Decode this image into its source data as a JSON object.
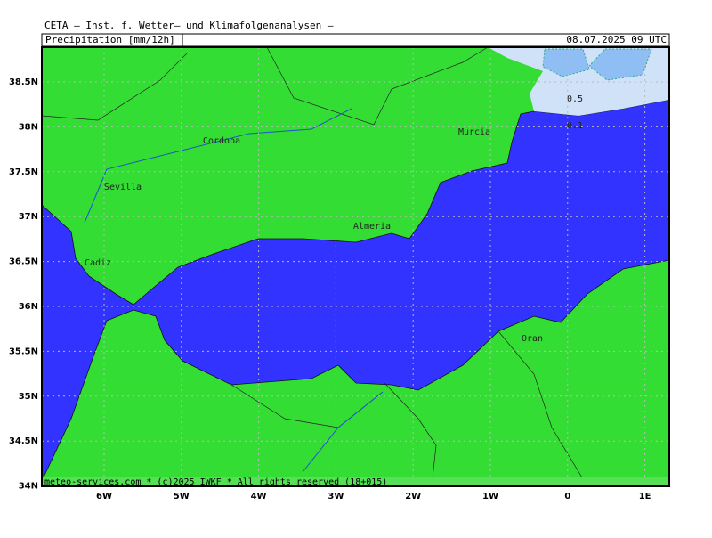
{
  "header": {
    "title": "CETA — Inst. f. Wetter— und Klimafolgenanalysen —",
    "subtitle": "Precipitation [mm/12h]",
    "date": "08.07.2025 09 UTC"
  },
  "map": {
    "lon_labels": [
      "6W",
      "5W",
      "4W",
      "3W",
      "2W",
      "1W",
      "0",
      "1E"
    ],
    "lat_labels": [
      "38.5N",
      "38N",
      "37.5N",
      "37N",
      "36.5N",
      "36N",
      "35.5N",
      "35N",
      "34.5N",
      "34N"
    ],
    "cities": [
      "Cordoba",
      "Sevilla",
      "Murcia",
      "Almeria",
      "Cadiz",
      "Oran"
    ],
    "contours": [
      "0.5",
      "0.1"
    ],
    "footer": "meteo-services.com * (c)2025 IWKF * All rights reserved (18+015)"
  }
}
